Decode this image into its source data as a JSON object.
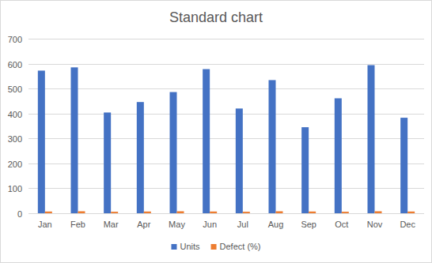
{
  "chart_data": {
    "type": "bar",
    "title": "Standard chart",
    "categories": [
      "Jan",
      "Feb",
      "Mar",
      "Apr",
      "May",
      "Jun",
      "Jul",
      "Aug",
      "Sep",
      "Oct",
      "Nov",
      "Dec"
    ],
    "series": [
      {
        "name": "Units",
        "color": "#4472c4",
        "values": [
          572,
          585,
          404,
          446,
          486,
          578,
          420,
          534,
          345,
          461,
          594,
          383
        ]
      },
      {
        "name": "Defect (%)",
        "color": "#ed7d31",
        "values": [
          7,
          8,
          6,
          7,
          8,
          7,
          6,
          8,
          7,
          6,
          8,
          7
        ]
      }
    ],
    "ylim": [
      0,
      700
    ],
    "yticks": [
      0,
      100,
      200,
      300,
      400,
      500,
      600,
      700
    ],
    "grid": true,
    "legend": "bottom"
  }
}
